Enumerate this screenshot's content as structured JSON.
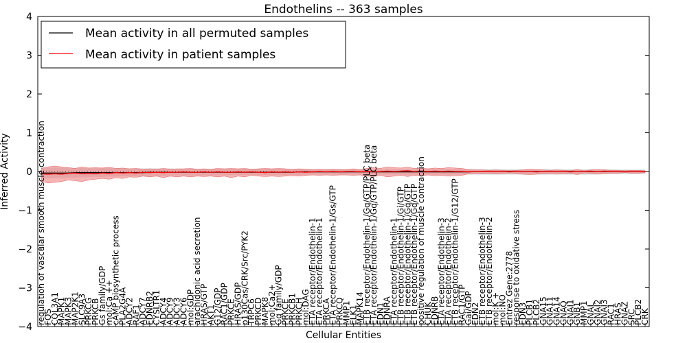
{
  "chart_data": {
    "type": "line",
    "title": "Endothelins -- 363 samples",
    "xlabel": "Cellular Entities",
    "ylabel": "Inferred Activity",
    "ylim": [
      -4,
      4
    ],
    "yticks": [
      -4,
      -3,
      -2,
      -1,
      0,
      1,
      2,
      3,
      4
    ],
    "ytick_labels": [
      "−4",
      "−3",
      "−2",
      "−1",
      "0",
      "1",
      "2",
      "3",
      "4"
    ],
    "legend": {
      "placement": "top-left",
      "entries": [
        {
          "label": "Mean activity in all permuted samples",
          "color": "#000000"
        },
        {
          "label": "Mean activity in patient samples",
          "color": "#ff0000"
        }
      ]
    },
    "colors": {
      "permuted": "#000000",
      "patient": "#ff0000",
      "patient_band": "#f08080",
      "permuted_band": "#b0b0b0"
    },
    "categories": [
      "regulation of vascular smooth muscle contraction",
      "FOS",
      "COL3A1",
      "MAPK1",
      "MAPK3",
      "MAP2K1",
      "SLC9A3",
      "PRKCG",
      "PRKCB",
      "Gs family/GDP",
      "mol:Ca ++",
      "cAMP biosynthetic process",
      "PLA2G4A",
      "ADCY2",
      "RAF1",
      "ADCY7",
      "EDNRB2",
      "CYSLTR1",
      "ADCY4",
      "ADCY9",
      "ADCY3",
      "ADCY6",
      "mol:GDP",
      "arachidonic acid secretion",
      "HRAS/GTP",
      "AKT1",
      "G12/GDP",
      "RAC1/GDP",
      "PRKCE",
      "HRAS/GDP",
      "p130Cas/CRK/Src/PYK2",
      "TRPC6",
      "PRKCD",
      "MAPK8",
      "mol:Ca2+",
      "Gq family/GDP",
      "PRKCE",
      "PRKCB1",
      "PRKCH",
      "mol:DAG",
      "ETA receptor/Endothelin-1",
      "ETA receptor/Endothelin-1",
      "PRKCA",
      "ETA receptor/Endothelin-1/Gs/GTP",
      "PRKCQ",
      "MMP1",
      "ELK1",
      "MAPK14",
      "ETB receptor/Endothelin-1/Gq/GTP/PLC beta",
      "ETA receptor/Endothelin-1/Gq/GTP/PLC beta",
      "EDN1",
      "EDNRA",
      "ETA receptor/Endothelin-1",
      "ETB receptor/Endothelin-1/Gi/GTP",
      "ETB receptor/Endothelin-1/Gq/GTP",
      "ETB receptor/Endothelin-1/Gq/GTP",
      "positive regulation of muscle contraction",
      "CHUK",
      "EDNRB",
      "ETA receptor/Endothelin-3",
      "ETA receptor/Endothelin-2",
      "ETB receptor/Endothelin-1/G12/GTP",
      "RAC1/GTP",
      "Gai/GDP",
      "EDN2",
      "ETB receptor/Endothelin-3",
      "ETB receptor/Endothelin-2",
      "mol:K +",
      "mol:NO",
      "Entrez Gene:2778",
      "response to oxidative stress",
      "EDN3",
      "PLCB1",
      "PLCB2",
      "GNA15",
      "GNA11",
      "GNA14",
      "GNAQ",
      "GNAI1",
      "GNB1",
      "MMP1",
      "GNAL",
      "GNAI2",
      "GNAI3",
      "RAC1",
      "HRAS",
      "GNAZ",
      "SRC",
      "PLCB2",
      "CRK"
    ],
    "series": [
      {
        "name": "Mean activity in all permuted samples",
        "values": [
          -0.04,
          -0.04,
          -0.04,
          -0.04,
          -0.04,
          -0.03,
          -0.03,
          -0.03,
          -0.03,
          -0.03,
          -0.03,
          -0.03,
          -0.03,
          -0.03,
          -0.03,
          -0.03,
          -0.02,
          -0.02,
          -0.02,
          -0.02,
          -0.02,
          -0.02,
          -0.02,
          -0.02,
          -0.02,
          -0.02,
          -0.02,
          -0.02,
          -0.02,
          -0.02,
          -0.02,
          -0.02,
          -0.02,
          -0.02,
          -0.02,
          -0.02,
          -0.02,
          -0.02,
          -0.01,
          -0.01,
          -0.01,
          -0.01,
          -0.01,
          -0.01,
          -0.01,
          -0.01,
          -0.01,
          -0.01,
          -0.01,
          -0.01,
          -0.01,
          -0.01,
          -0.01,
          -0.01,
          -0.01,
          -0.01,
          -0.01,
          -0.01,
          -0.01,
          -0.01,
          -0.01,
          -0.01,
          -0.01,
          -0.01,
          0.0,
          0.0,
          0.0,
          0.0,
          0.0,
          0.0,
          0.0,
          0.0,
          0.0,
          0.0,
          0.0,
          0.0,
          0.0,
          0.0,
          0.0,
          0.0,
          0.0,
          0.0,
          0.0,
          0.0,
          0.0,
          0.0,
          0.0,
          0.0,
          0.0,
          0.0
        ]
      },
      {
        "name": "Mean activity in patient samples",
        "values": [
          -0.06,
          -0.07,
          -0.06,
          -0.07,
          -0.05,
          -0.04,
          -0.06,
          -0.05,
          -0.06,
          -0.04,
          -0.05,
          -0.03,
          -0.04,
          -0.03,
          -0.04,
          -0.02,
          -0.03,
          -0.02,
          -0.03,
          -0.02,
          -0.02,
          -0.01,
          -0.02,
          -0.02,
          -0.01,
          -0.02,
          -0.01,
          -0.02,
          -0.02,
          -0.01,
          -0.02,
          -0.01,
          -0.02,
          -0.03,
          -0.01,
          -0.02,
          -0.01,
          -0.02,
          -0.01,
          -0.02,
          -0.01,
          0.0,
          -0.01,
          0.0,
          -0.01,
          0.0,
          0.0,
          -0.01,
          0.0,
          -0.01,
          0.0,
          0.01,
          0.0,
          0.01,
          0.02,
          0.0,
          0.01,
          0.0,
          0.01,
          0.0,
          0.01,
          0.0,
          0.0,
          -0.01,
          0.0,
          0.0,
          0.0,
          0.0,
          0.0,
          -0.01,
          0.0,
          0.0,
          0.0,
          -0.01,
          0.0,
          0.0,
          0.0,
          0.0,
          -0.01,
          0.0,
          0.0,
          0.01,
          0.0,
          0.01,
          0.0,
          0.0,
          0.0,
          0.0,
          0.0,
          0.0
        ]
      }
    ],
    "patient_band": {
      "upper": [
        0.08,
        0.12,
        0.14,
        0.12,
        0.1,
        0.08,
        0.12,
        0.09,
        0.1,
        0.09,
        0.11,
        0.08,
        0.09,
        0.07,
        0.08,
        0.06,
        0.07,
        0.06,
        0.08,
        0.06,
        0.07,
        0.07,
        0.08,
        0.06,
        0.07,
        0.06,
        0.08,
        0.07,
        0.08,
        0.07,
        0.08,
        0.06,
        0.07,
        0.08,
        0.07,
        0.08,
        0.07,
        0.06,
        0.07,
        0.06,
        0.05,
        0.06,
        0.05,
        0.06,
        0.05,
        0.05,
        0.07,
        0.05,
        0.08,
        0.1,
        0.08,
        0.12,
        0.1,
        0.09,
        0.11,
        0.08,
        0.09,
        0.07,
        0.09,
        0.08,
        0.1,
        0.09,
        0.08,
        0.05,
        0.04,
        0.04,
        0.03,
        0.04,
        0.03,
        0.02,
        0.03,
        0.04,
        0.06,
        0.05,
        0.04,
        0.03,
        0.04,
        0.03,
        0.02,
        0.05,
        0.02,
        0.04,
        0.05,
        0.04,
        0.03,
        0.03,
        0.02,
        0.03,
        0.03,
        0.02
      ],
      "lower": [
        -0.25,
        -0.3,
        -0.28,
        -0.26,
        -0.22,
        -0.24,
        -0.26,
        -0.22,
        -0.2,
        -0.18,
        -0.2,
        -0.16,
        -0.18,
        -0.14,
        -0.15,
        -0.12,
        -0.14,
        -0.12,
        -0.16,
        -0.12,
        -0.14,
        -0.12,
        -0.14,
        -0.12,
        -0.13,
        -0.12,
        -0.14,
        -0.12,
        -0.16,
        -0.12,
        -0.14,
        -0.1,
        -0.12,
        -0.13,
        -0.12,
        -0.13,
        -0.12,
        -0.11,
        -0.12,
        -0.1,
        -0.09,
        -0.1,
        -0.09,
        -0.1,
        -0.09,
        -0.09,
        -0.1,
        -0.09,
        -0.12,
        -0.13,
        -0.1,
        -0.14,
        -0.12,
        -0.1,
        -0.13,
        -0.1,
        -0.11,
        -0.09,
        -0.11,
        -0.1,
        -0.12,
        -0.11,
        -0.1,
        -0.06,
        -0.05,
        -0.05,
        -0.05,
        -0.06,
        -0.05,
        -0.04,
        -0.05,
        -0.07,
        -0.08,
        -0.07,
        -0.06,
        -0.05,
        -0.06,
        -0.05,
        -0.05,
        -0.08,
        -0.04,
        -0.05,
        -0.06,
        -0.05,
        -0.04,
        -0.04,
        -0.03,
        -0.04,
        -0.04,
        -0.03
      ]
    },
    "permuted_band": {
      "upper": [
        0.1,
        0.1,
        0.1,
        0.1,
        0.1,
        0.09,
        0.09,
        0.09,
        0.09,
        0.09,
        0.09,
        0.08,
        0.08,
        0.08,
        0.08,
        0.08,
        0.08,
        0.08,
        0.08,
        0.08,
        0.07,
        0.07,
        0.07,
        0.07,
        0.07,
        0.07,
        0.07,
        0.07,
        0.07,
        0.07,
        0.07,
        0.07,
        0.07,
        0.07,
        0.07,
        0.07,
        0.06,
        0.06,
        0.06,
        0.06,
        0.06,
        0.06,
        0.06,
        0.06,
        0.06,
        0.06,
        0.06,
        0.06,
        0.06,
        0.06,
        0.06,
        0.06,
        0.06,
        0.06,
        0.06,
        0.06,
        0.06,
        0.06,
        0.06,
        0.06,
        0.06,
        0.06,
        0.06,
        0.06,
        0.06,
        0.06,
        0.06,
        0.06,
        0.06,
        0.06,
        0.06,
        0.06,
        0.06,
        0.06,
        0.06,
        0.06,
        0.06,
        0.06,
        0.06,
        0.06,
        0.06,
        0.06,
        0.06,
        0.06,
        0.06,
        0.05,
        0.05,
        0.05,
        0.05,
        0.05
      ],
      "lower": [
        -0.18,
        -0.18,
        -0.17,
        -0.17,
        -0.16,
        -0.16,
        -0.15,
        -0.15,
        -0.14,
        -0.14,
        -0.13,
        -0.13,
        -0.12,
        -0.12,
        -0.12,
        -0.11,
        -0.11,
        -0.11,
        -0.11,
        -0.1,
        -0.1,
        -0.1,
        -0.1,
        -0.1,
        -0.1,
        -0.1,
        -0.1,
        -0.09,
        -0.09,
        -0.09,
        -0.09,
        -0.09,
        -0.09,
        -0.09,
        -0.09,
        -0.09,
        -0.09,
        -0.09,
        -0.09,
        -0.09,
        -0.08,
        -0.08,
        -0.08,
        -0.08,
        -0.08,
        -0.08,
        -0.08,
        -0.08,
        -0.08,
        -0.08,
        -0.08,
        -0.08,
        -0.08,
        -0.08,
        -0.08,
        -0.08,
        -0.08,
        -0.08,
        -0.08,
        -0.08,
        -0.08,
        -0.08,
        -0.08,
        -0.08,
        -0.08,
        -0.08,
        -0.08,
        -0.08,
        -0.08,
        -0.08,
        -0.08,
        -0.08,
        -0.08,
        -0.08,
        -0.08,
        -0.08,
        -0.08,
        -0.08,
        -0.08,
        -0.08,
        -0.08,
        -0.08,
        -0.08,
        -0.07,
        -0.07,
        -0.07,
        -0.07,
        -0.07,
        -0.07,
        -0.07
      ]
    }
  }
}
